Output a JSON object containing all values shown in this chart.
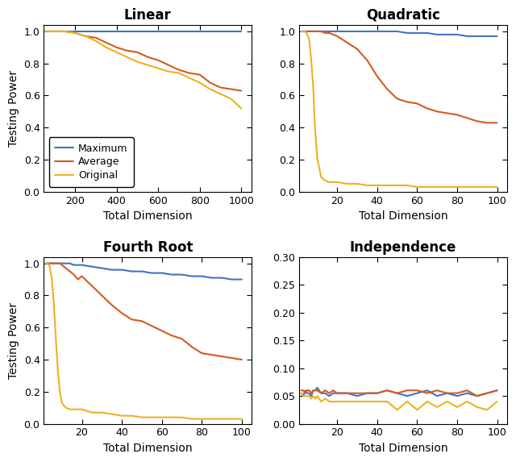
{
  "titles": [
    "Linear",
    "Quadratic",
    "Fourth Root",
    "Independence"
  ],
  "colors": {
    "maximum": "#4472C4",
    "average": "#D45B20",
    "original": "#EDB120"
  },
  "legend_labels": [
    "Maximum",
    "Average",
    "Original"
  ],
  "xlabel": "Total Dimension",
  "ylabel": "Testing Power",
  "linear": {
    "x": [
      50,
      100,
      150,
      200,
      250,
      300,
      350,
      400,
      450,
      500,
      550,
      600,
      650,
      700,
      750,
      800,
      850,
      900,
      950,
      1000
    ],
    "maximum": [
      1.0,
      1.0,
      1.0,
      1.0,
      1.0,
      1.0,
      1.0,
      1.0,
      1.0,
      1.0,
      1.0,
      1.0,
      1.0,
      1.0,
      1.0,
      1.0,
      1.0,
      1.0,
      1.0,
      1.0
    ],
    "average": [
      1.0,
      1.0,
      1.0,
      0.99,
      0.97,
      0.96,
      0.93,
      0.9,
      0.88,
      0.87,
      0.84,
      0.82,
      0.79,
      0.76,
      0.74,
      0.73,
      0.68,
      0.65,
      0.64,
      0.63
    ],
    "original": [
      1.0,
      1.0,
      1.0,
      0.99,
      0.97,
      0.94,
      0.9,
      0.87,
      0.84,
      0.81,
      0.79,
      0.77,
      0.75,
      0.74,
      0.71,
      0.68,
      0.64,
      0.61,
      0.58,
      0.52
    ]
  },
  "quadratic": {
    "x": [
      2,
      3,
      4,
      5,
      6,
      7,
      8,
      9,
      10,
      12,
      14,
      16,
      18,
      20,
      25,
      30,
      35,
      40,
      45,
      50,
      55,
      60,
      65,
      70,
      75,
      80,
      85,
      90,
      95,
      100
    ],
    "maximum": [
      1.0,
      1.0,
      1.0,
      1.0,
      1.0,
      1.0,
      1.0,
      1.0,
      1.0,
      1.0,
      1.0,
      1.0,
      1.0,
      1.0,
      1.0,
      1.0,
      1.0,
      1.0,
      1.0,
      1.0,
      0.99,
      0.99,
      0.99,
      0.98,
      0.98,
      0.98,
      0.97,
      0.97,
      0.97,
      0.97
    ],
    "average": [
      1.0,
      1.0,
      1.0,
      1.0,
      1.0,
      1.0,
      1.0,
      1.0,
      1.0,
      1.0,
      0.99,
      0.99,
      0.98,
      0.97,
      0.93,
      0.89,
      0.82,
      0.72,
      0.64,
      0.58,
      0.56,
      0.55,
      0.52,
      0.5,
      0.49,
      0.48,
      0.46,
      0.44,
      0.43,
      0.43
    ],
    "original": [
      1.0,
      1.0,
      1.0,
      0.98,
      0.95,
      0.82,
      0.65,
      0.38,
      0.21,
      0.09,
      0.07,
      0.06,
      0.06,
      0.06,
      0.05,
      0.05,
      0.04,
      0.04,
      0.04,
      0.04,
      0.04,
      0.03,
      0.03,
      0.03,
      0.03,
      0.03,
      0.03,
      0.03,
      0.03,
      0.03
    ]
  },
  "fourth_root": {
    "x": [
      2,
      3,
      4,
      5,
      6,
      7,
      8,
      9,
      10,
      12,
      14,
      16,
      18,
      20,
      25,
      30,
      35,
      40,
      45,
      50,
      55,
      60,
      65,
      70,
      75,
      80,
      85,
      90,
      95,
      100
    ],
    "maximum": [
      1.0,
      1.0,
      1.0,
      1.0,
      1.0,
      1.0,
      1.0,
      1.0,
      1.0,
      1.0,
      1.0,
      0.99,
      0.99,
      0.99,
      0.98,
      0.97,
      0.96,
      0.96,
      0.95,
      0.95,
      0.94,
      0.94,
      0.93,
      0.93,
      0.92,
      0.92,
      0.91,
      0.91,
      0.9,
      0.9
    ],
    "average": [
      1.0,
      1.0,
      1.0,
      1.0,
      1.0,
      1.0,
      1.0,
      1.0,
      0.99,
      0.97,
      0.95,
      0.93,
      0.9,
      0.92,
      0.86,
      0.8,
      0.74,
      0.69,
      0.65,
      0.64,
      0.61,
      0.58,
      0.55,
      0.53,
      0.48,
      0.44,
      0.43,
      0.42,
      0.41,
      0.4
    ],
    "original": [
      1.0,
      1.0,
      0.98,
      0.9,
      0.75,
      0.53,
      0.33,
      0.2,
      0.13,
      0.1,
      0.09,
      0.09,
      0.09,
      0.09,
      0.07,
      0.07,
      0.06,
      0.05,
      0.05,
      0.04,
      0.04,
      0.04,
      0.04,
      0.04,
      0.03,
      0.03,
      0.03,
      0.03,
      0.03,
      0.03
    ]
  },
  "independence": {
    "x": [
      2,
      3,
      4,
      5,
      6,
      7,
      8,
      9,
      10,
      12,
      14,
      16,
      18,
      20,
      25,
      30,
      35,
      40,
      45,
      50,
      55,
      60,
      65,
      70,
      75,
      80,
      85,
      90,
      95,
      100
    ],
    "maximum": [
      0.055,
      0.05,
      0.06,
      0.055,
      0.055,
      0.05,
      0.06,
      0.06,
      0.065,
      0.055,
      0.055,
      0.05,
      0.055,
      0.055,
      0.055,
      0.05,
      0.055,
      0.055,
      0.06,
      0.055,
      0.05,
      0.055,
      0.06,
      0.05,
      0.055,
      0.05,
      0.055,
      0.05,
      0.055,
      0.06
    ],
    "average": [
      0.06,
      0.06,
      0.055,
      0.06,
      0.06,
      0.055,
      0.06,
      0.06,
      0.06,
      0.055,
      0.06,
      0.055,
      0.06,
      0.055,
      0.055,
      0.055,
      0.055,
      0.055,
      0.06,
      0.055,
      0.06,
      0.06,
      0.055,
      0.06,
      0.055,
      0.055,
      0.06,
      0.05,
      0.055,
      0.06
    ],
    "original": [
      0.055,
      0.05,
      0.05,
      0.05,
      0.05,
      0.045,
      0.05,
      0.045,
      0.05,
      0.04,
      0.045,
      0.04,
      0.04,
      0.04,
      0.04,
      0.04,
      0.04,
      0.04,
      0.04,
      0.025,
      0.04,
      0.025,
      0.04,
      0.03,
      0.04,
      0.03,
      0.04,
      0.03,
      0.025,
      0.04
    ]
  },
  "linear_xlim": [
    50,
    1050
  ],
  "linear_xticks": [
    200,
    400,
    600,
    800,
    1000
  ],
  "quad_xlim": [
    1,
    105
  ],
  "quad_xticks": [
    20,
    40,
    60,
    80,
    100
  ],
  "fr_xlim": [
    1,
    105
  ],
  "fr_xticks": [
    20,
    40,
    60,
    80,
    100
  ],
  "ind_xlim": [
    1,
    105
  ],
  "ind_xticks": [
    20,
    40,
    60,
    80,
    100
  ],
  "linear_ylim": [
    0,
    1.04
  ],
  "quad_ylim": [
    0,
    1.04
  ],
  "fr_ylim": [
    0,
    1.04
  ],
  "ind_ylim": [
    0,
    0.3
  ],
  "linear_yticks": [
    0,
    0.2,
    0.4,
    0.6,
    0.8,
    1.0
  ],
  "quad_yticks": [
    0,
    0.2,
    0.4,
    0.6,
    0.8,
    1.0
  ],
  "fr_yticks": [
    0,
    0.2,
    0.4,
    0.6,
    0.8,
    1.0
  ],
  "ind_yticks": [
    0,
    0.05,
    0.1,
    0.15,
    0.2,
    0.25,
    0.3
  ],
  "title_fontsize": 12,
  "label_fontsize": 10,
  "tick_fontsize": 9,
  "legend_fontsize": 9,
  "linewidth": 1.5,
  "background_color": "#FFFFFF"
}
